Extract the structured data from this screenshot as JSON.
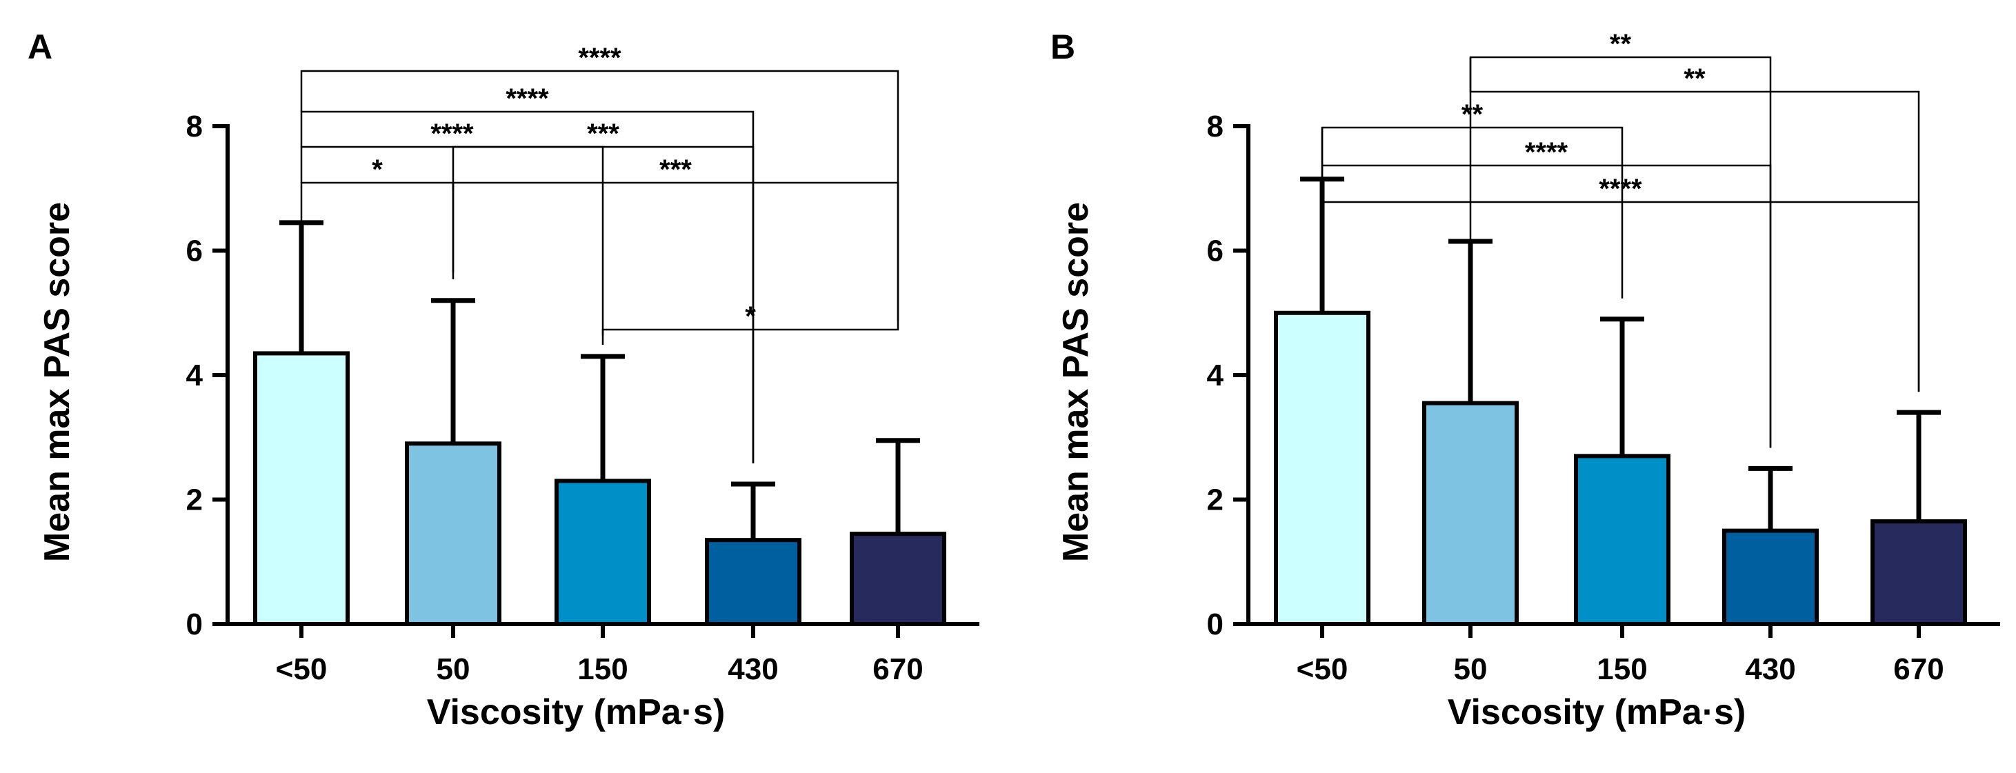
{
  "chart_data": [
    {
      "type": "bar",
      "panel": "A",
      "categories": [
        "<50",
        "50",
        "150",
        "430",
        "670"
      ],
      "values": [
        4.35,
        2.9,
        2.3,
        1.35,
        1.45
      ],
      "error_upper": [
        6.45,
        5.2,
        4.3,
        2.25,
        2.95
      ],
      "colors": [
        "#ccffff",
        "#7fc3e3",
        "#0090c8",
        "#005f9e",
        "#262a5c"
      ],
      "xlabel": "Viscosity (mPa·s)",
      "ylabel": "Mean max PAS score",
      "ylim": [
        0,
        8
      ],
      "yticks": [
        0,
        2,
        4,
        6,
        8
      ],
      "significance": [
        {
          "from": 0,
          "to": 1,
          "label": "*"
        },
        {
          "from": 0,
          "to": 2,
          "label": "****"
        },
        {
          "from": 0,
          "to": 3,
          "label": "****"
        },
        {
          "from": 0,
          "to": 4,
          "label": "****"
        },
        {
          "from": 1,
          "to": 3,
          "label": "***"
        },
        {
          "from": 1,
          "to": 4,
          "label": "***"
        },
        {
          "from": 2,
          "to": 4,
          "label": "*"
        }
      ]
    },
    {
      "type": "bar",
      "panel": "B",
      "categories": [
        "<50",
        "50",
        "150",
        "430",
        "670"
      ],
      "values": [
        5.0,
        3.55,
        2.7,
        1.5,
        1.65
      ],
      "error_upper": [
        7.15,
        6.15,
        4.9,
        2.5,
        3.4
      ],
      "colors": [
        "#ccffff",
        "#7fc3e3",
        "#0090c8",
        "#005f9e",
        "#262a5c"
      ],
      "xlabel": "Viscosity (mPa·s)",
      "ylabel": "Mean max PAS score",
      "ylim": [
        0,
        8
      ],
      "yticks": [
        0,
        2,
        4,
        6,
        8
      ],
      "significance": [
        {
          "from": 0,
          "to": 2,
          "label": "**"
        },
        {
          "from": 0,
          "to": 3,
          "label": "****"
        },
        {
          "from": 0,
          "to": 4,
          "label": "****"
        },
        {
          "from": 1,
          "to": 3,
          "label": "**"
        },
        {
          "from": 1,
          "to": 4,
          "label": "**"
        }
      ]
    }
  ]
}
